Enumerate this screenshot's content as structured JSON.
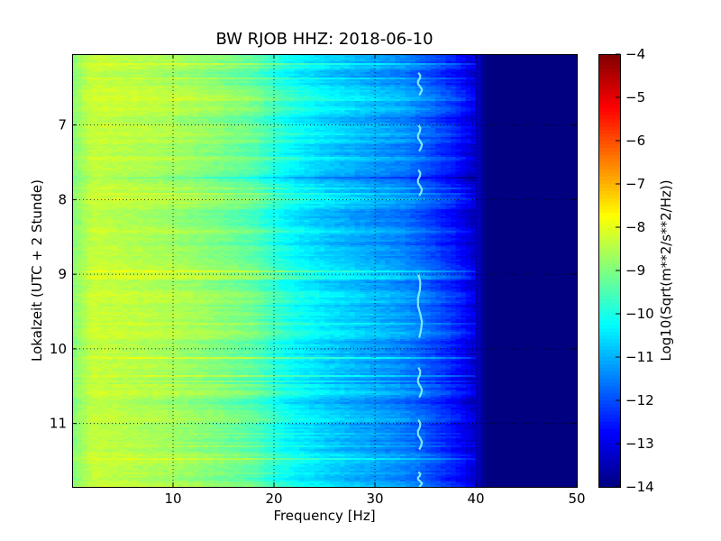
{
  "chart_data": {
    "type": "heatmap",
    "title": "BW RJOB HHZ: 2018-06-10",
    "xlabel": "Frequency [Hz]",
    "ylabel": "Lokalzeit (UTC + 2 Stunde)",
    "xlim": [
      0,
      50
    ],
    "ylim": [
      6.05,
      11.85
    ],
    "y_inverted": true,
    "x_ticks": [
      10,
      20,
      30,
      40,
      50
    ],
    "y_ticks": [
      7,
      8,
      9,
      10,
      11
    ],
    "grid": true,
    "colormap": "jet",
    "colorbar": {
      "label": "Log10(Sqrt(m**2/s**2/Hz))",
      "min": -14,
      "max": -4,
      "ticks": [
        -4,
        -5,
        -6,
        -7,
        -8,
        -9,
        -10,
        -11,
        -12,
        -13,
        -14
      ]
    },
    "level_profile": {
      "frequency_hz": [
        0,
        2,
        5,
        10,
        14,
        18,
        20,
        22,
        25,
        28,
        30,
        33,
        35,
        38,
        40,
        41,
        50
      ],
      "log10_amplitude": [
        -9.0,
        -8.3,
        -8.4,
        -8.6,
        -8.9,
        -9.3,
        -9.8,
        -10.2,
        -10.6,
        -10.9,
        -11.1,
        -11.4,
        -11.8,
        -12.5,
        -13.2,
        -14.0,
        -14.0
      ]
    },
    "tremor_line_hz": [
      34.3,
      35.0
    ],
    "tremor_segments_h": [
      [
        6.3,
        6.6
      ],
      [
        7.0,
        7.35
      ],
      [
        7.6,
        7.95
      ],
      [
        9.0,
        9.85
      ],
      [
        10.25,
        10.65
      ],
      [
        10.95,
        11.35
      ],
      [
        11.65,
        11.85
      ]
    ]
  }
}
